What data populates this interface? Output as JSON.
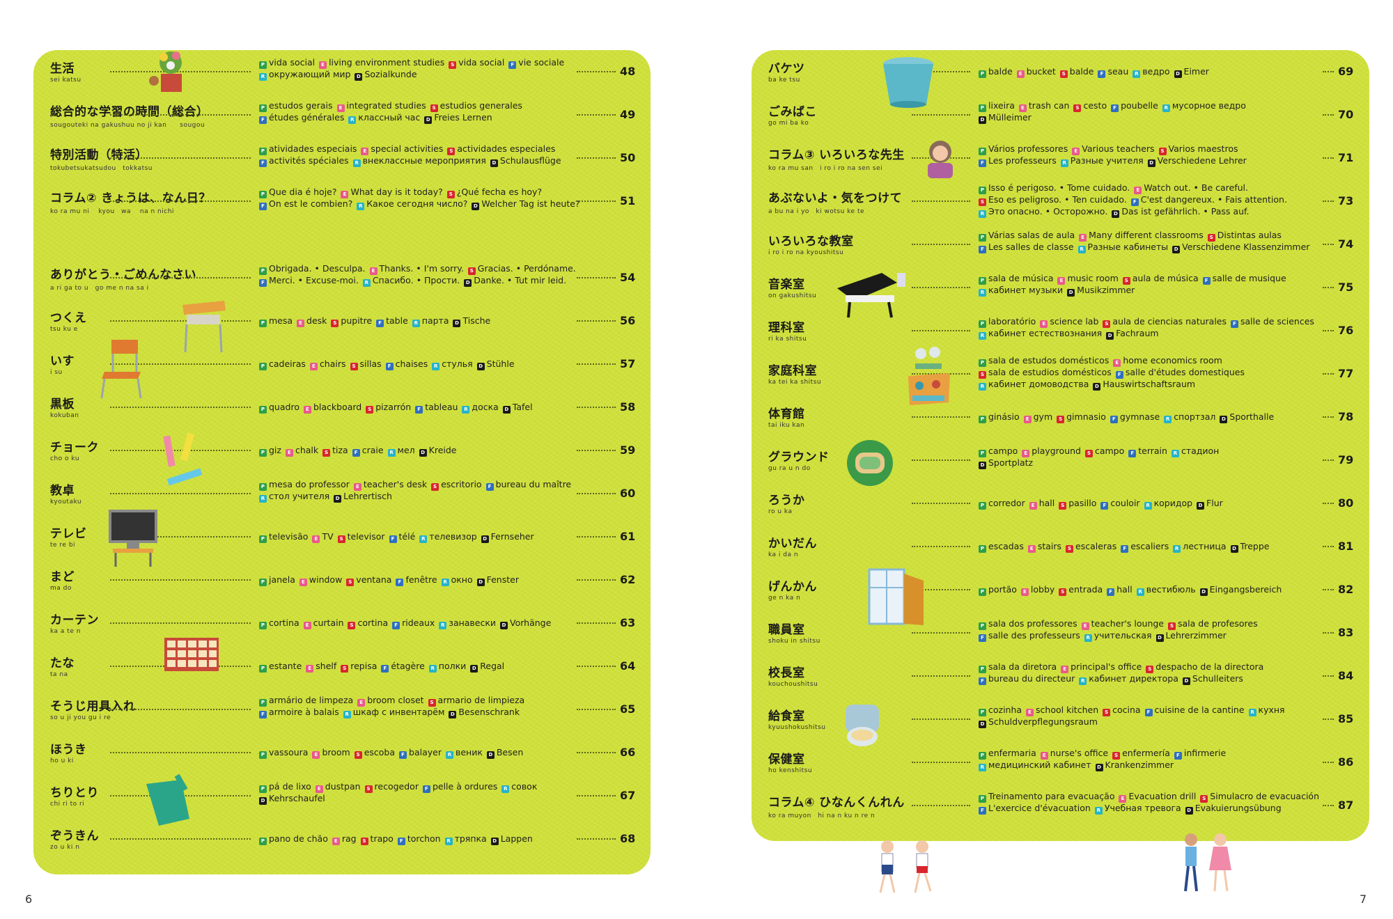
{
  "folio_left": "6",
  "folio_right": "7",
  "left": [
    {
      "jp": "生活",
      "romaji": "sei katsu",
      "l1": [
        [
          "pt",
          "vida social"
        ],
        [
          "en",
          "living environment studies"
        ],
        [
          "es",
          "vida social"
        ],
        [
          "fr",
          "vie sociale"
        ]
      ],
      "l2": [
        [
          "ru",
          "окружающий мир"
        ],
        [
          "de",
          "Sozialkunde"
        ]
      ],
      "page": "48"
    },
    {
      "jp": "総合的な学習の時間（総合）",
      "romaji": "sougouteki na gakushuu no ji kan　　sougou",
      "l1": [
        [
          "pt",
          "estudos gerais"
        ],
        [
          "en",
          "integrated studies"
        ],
        [
          "es",
          "estudios generales"
        ]
      ],
      "l2": [
        [
          "fr",
          "études générales"
        ],
        [
          "ru",
          "классный час"
        ],
        [
          "de",
          "Freies Lernen"
        ]
      ],
      "page": "49"
    },
    {
      "jp": "特別活動（特活）",
      "romaji": "tokubetsukatsudou　tokkatsu",
      "l1": [
        [
          "pt",
          "atividades especiais"
        ],
        [
          "en",
          "special activities"
        ],
        [
          "es",
          "actividades especiales"
        ]
      ],
      "l2": [
        [
          "fr",
          "activités spéciales"
        ],
        [
          "ru",
          "внеклассные мероприятия"
        ],
        [
          "de",
          "Schulausflüge"
        ]
      ],
      "page": "50"
    },
    {
      "jp": "コラム② きょうは、なん日？",
      "romaji": "ko ra mu ni　 kyou　wa　 na n nichi",
      "l1": [
        [
          "pt",
          "Que dia é hoje?"
        ],
        [
          "en",
          "What day is it today?"
        ],
        [
          "es",
          "¿Qué fecha es hoy?"
        ]
      ],
      "l2": [
        [
          "fr",
          "On est le combien?"
        ],
        [
          "ru",
          "Какое сегодня число?"
        ],
        [
          "de",
          "Welcher Tag ist heute?"
        ]
      ],
      "page": "51"
    },
    {
      "jp": "ありがとう・ごめんなさい",
      "romaji": "a ri ga to u　go me n na sa i",
      "l1": [
        [
          "pt",
          "Obrigada. • Desculpa."
        ],
        [
          "en",
          "Thanks. • I'm sorry."
        ],
        [
          "es",
          "Gracias. • Perdóname."
        ]
      ],
      "l2": [
        [
          "fr",
          "Merci. • Excuse-moi."
        ],
        [
          "ru",
          "Спасибо. • Прости."
        ],
        [
          "de",
          "Danke. • Tut mir leid."
        ]
      ],
      "page": "54"
    },
    {
      "jp": "つくえ",
      "romaji": "tsu ku e",
      "l1": [
        [
          "pt",
          "mesa"
        ],
        [
          "en",
          "desk"
        ],
        [
          "es",
          "pupitre"
        ],
        [
          "fr",
          "table"
        ],
        [
          "ru",
          "парта"
        ],
        [
          "de",
          "Tische"
        ]
      ],
      "l2": [],
      "page": "56"
    },
    {
      "jp": "いす",
      "romaji": "i su",
      "l1": [
        [
          "pt",
          "cadeiras"
        ],
        [
          "en",
          "chairs"
        ],
        [
          "es",
          "sillas"
        ],
        [
          "fr",
          "chaises"
        ],
        [
          "ru",
          "стулья"
        ],
        [
          "de",
          "Stühle"
        ]
      ],
      "l2": [],
      "page": "57"
    },
    {
      "jp": "黒板",
      "romaji": "kokuban",
      "l1": [
        [
          "pt",
          "quadro"
        ],
        [
          "en",
          "blackboard"
        ],
        [
          "es",
          "pizarrón"
        ],
        [
          "fr",
          "tableau"
        ],
        [
          "ru",
          "доска"
        ],
        [
          "de",
          "Tafel"
        ]
      ],
      "l2": [],
      "page": "58"
    },
    {
      "jp": "チョーク",
      "romaji": "cho o ku",
      "l1": [
        [
          "pt",
          "giz"
        ],
        [
          "en",
          "chalk"
        ],
        [
          "es",
          "tiza"
        ],
        [
          "fr",
          "craie"
        ],
        [
          "ru",
          "мел"
        ],
        [
          "de",
          "Kreide"
        ]
      ],
      "l2": [],
      "page": "59"
    },
    {
      "jp": "教卓",
      "romaji": "kyoutaku",
      "l1": [
        [
          "pt",
          "mesa do professor"
        ],
        [
          "en",
          "teacher's desk"
        ],
        [
          "es",
          "escritorio"
        ],
        [
          "fr",
          "bureau du maître"
        ]
      ],
      "l2": [
        [
          "ru",
          "стол учителя"
        ],
        [
          "de",
          "Lehrertisch"
        ]
      ],
      "page": "60"
    },
    {
      "jp": "テレビ",
      "romaji": "te re bi",
      "l1": [
        [
          "pt",
          "televisão"
        ],
        [
          "en",
          "TV"
        ],
        [
          "es",
          "televisor"
        ],
        [
          "fr",
          "télé"
        ],
        [
          "ru",
          "телевизор"
        ],
        [
          "de",
          "Fernseher"
        ]
      ],
      "l2": [],
      "page": "61"
    },
    {
      "jp": "まど",
      "romaji": "ma do",
      "l1": [
        [
          "pt",
          "janela"
        ],
        [
          "en",
          "window"
        ],
        [
          "es",
          "ventana"
        ],
        [
          "fr",
          "fenêtre"
        ],
        [
          "ru",
          "окно"
        ],
        [
          "de",
          "Fenster"
        ]
      ],
      "l2": [],
      "page": "62"
    },
    {
      "jp": "カーテン",
      "romaji": "ka a te n",
      "l1": [
        [
          "pt",
          "cortina"
        ],
        [
          "en",
          "curtain"
        ],
        [
          "es",
          "cortina"
        ],
        [
          "fr",
          "rideaux"
        ],
        [
          "ru",
          "занавески"
        ],
        [
          "de",
          "Vorhänge"
        ]
      ],
      "l2": [],
      "page": "63"
    },
    {
      "jp": "たな",
      "romaji": "ta na",
      "l1": [
        [
          "pt",
          "estante"
        ],
        [
          "en",
          "shelf"
        ],
        [
          "es",
          "repisa"
        ],
        [
          "fr",
          "étagère"
        ],
        [
          "ru",
          "полки"
        ],
        [
          "de",
          "Regal"
        ]
      ],
      "l2": [],
      "page": "64"
    },
    {
      "jp": "そうじ用具入れ",
      "romaji": "so u ji you gu i re",
      "l1": [
        [
          "pt",
          "armário de limpeza"
        ],
        [
          "en",
          "broom closet"
        ],
        [
          "es",
          "armario de limpieza"
        ]
      ],
      "l2": [
        [
          "fr",
          "armoire à balais"
        ],
        [
          "ru",
          "шкаф с инвентарём"
        ],
        [
          "de",
          "Besenschrank"
        ]
      ],
      "page": "65"
    },
    {
      "jp": "ほうき",
      "romaji": "ho u ki",
      "l1": [
        [
          "pt",
          "vassoura"
        ],
        [
          "en",
          "broom"
        ],
        [
          "es",
          "escoba"
        ],
        [
          "fr",
          "balayer"
        ],
        [
          "ru",
          "веник"
        ],
        [
          "de",
          "Besen"
        ]
      ],
      "l2": [],
      "page": "66"
    },
    {
      "jp": "ちりとり",
      "romaji": "chi ri to ri",
      "l1": [
        [
          "pt",
          "pá de lixo"
        ],
        [
          "en",
          "dustpan"
        ],
        [
          "es",
          "recogedor"
        ],
        [
          "fr",
          "pelle à ordures"
        ],
        [
          "ru",
          "совок"
        ]
      ],
      "l2": [
        [
          "de",
          "Kehrschaufel"
        ]
      ],
      "page": "67"
    },
    {
      "jp": "ぞうきん",
      "romaji": "zo u ki n",
      "l1": [
        [
          "pt",
          "pano de chão"
        ],
        [
          "en",
          "rag"
        ],
        [
          "es",
          "trapo"
        ],
        [
          "fr",
          "torchon"
        ],
        [
          "ru",
          "тряпка"
        ],
        [
          "de",
          "Lappen"
        ]
      ],
      "l2": [],
      "page": "68"
    }
  ],
  "right": [
    {
      "jp": "バケツ",
      "romaji": "ba ke tsu",
      "l1": [
        [
          "pt",
          "balde"
        ],
        [
          "en",
          "bucket"
        ],
        [
          "es",
          "balde"
        ],
        [
          "fr",
          "seau"
        ],
        [
          "ru",
          "ведро"
        ],
        [
          "de",
          "Eimer"
        ]
      ],
      "l2": [],
      "l3": [],
      "page": "69"
    },
    {
      "jp": "ごみばこ",
      "romaji": "go mi ba ko",
      "l1": [
        [
          "pt",
          "lixeira"
        ],
        [
          "en",
          "trash can"
        ],
        [
          "es",
          "cesto"
        ],
        [
          "fr",
          "poubelle"
        ],
        [
          "ru",
          "мусорное ведро"
        ]
      ],
      "l2": [
        [
          "de",
          "Mülleimer"
        ]
      ],
      "l3": [],
      "page": "70"
    },
    {
      "jp": "コラム③ いろいろな先生",
      "romaji": "ko ra mu san　i ro i ro na sen sei",
      "l1": [
        [
          "pt",
          "Vários professores"
        ],
        [
          "en",
          "Various teachers"
        ],
        [
          "es",
          "Varios maestros"
        ]
      ],
      "l2": [
        [
          "fr",
          "Les professeurs"
        ],
        [
          "ru",
          "Разные учителя"
        ],
        [
          "de",
          "Verschiedene Lehrer"
        ]
      ],
      "l3": [],
      "page": "71"
    },
    {
      "jp": "あぶないよ・気をつけて",
      "romaji": "a bu na i yo　ki wotsu ke te",
      "l1": [
        [
          "pt",
          "Isso é perigoso. • Tome cuidado."
        ],
        [
          "en",
          "Watch out. • Be careful."
        ]
      ],
      "l2": [
        [
          "es",
          "Eso es peligroso. • Ten cuidado."
        ],
        [
          "fr",
          "C'est dangereux. • Fais attention."
        ]
      ],
      "l3": [
        [
          "ru",
          "Это опасно. • Осторожно."
        ],
        [
          "de",
          "Das ist gefährlich. • Pass auf."
        ]
      ],
      "page": "73"
    },
    {
      "jp": "いろいろな教室",
      "romaji": "i ro i ro na kyoushitsu",
      "l1": [
        [
          "pt",
          "Várias salas de aula"
        ],
        [
          "en",
          "Many different classrooms"
        ],
        [
          "es",
          "Distintas aulas"
        ]
      ],
      "l2": [
        [
          "fr",
          "Les salles de classe"
        ],
        [
          "ru",
          "Разные кабинеты"
        ],
        [
          "de",
          "Verschiedene Klassenzimmer"
        ]
      ],
      "l3": [],
      "page": "74"
    },
    {
      "jp": "音楽室",
      "romaji": "on gakushitsu",
      "l1": [
        [
          "pt",
          "sala de música"
        ],
        [
          "en",
          "music room"
        ],
        [
          "es",
          "aula de música"
        ],
        [
          "fr",
          "salle de musique"
        ]
      ],
      "l2": [
        [
          "ru",
          "кабинет музыки"
        ],
        [
          "de",
          "Musikzimmer"
        ]
      ],
      "l3": [],
      "page": "75"
    },
    {
      "jp": "理科室",
      "romaji": "ri ka shitsu",
      "l1": [
        [
          "pt",
          "laboratório"
        ],
        [
          "en",
          "science lab"
        ],
        [
          "es",
          "aula de ciencias naturales"
        ],
        [
          "fr",
          "salle de sciences"
        ]
      ],
      "l2": [
        [
          "ru",
          "кабинет естествознания"
        ],
        [
          "de",
          "Fachraum"
        ]
      ],
      "l3": [],
      "page": "76"
    },
    {
      "jp": "家庭科室",
      "romaji": "ka tei ka shitsu",
      "l1": [
        [
          "pt",
          "sala de estudos domésticos"
        ],
        [
          "en",
          "home economics room"
        ]
      ],
      "l2": [
        [
          "es",
          "sala de estudios domésticos"
        ],
        [
          "fr",
          "salle d'études domestiques"
        ]
      ],
      "l3": [
        [
          "ru",
          "кабинет домоводства"
        ],
        [
          "de",
          "Hauswirtschaftsraum"
        ]
      ],
      "page": "77"
    },
    {
      "jp": "体育館",
      "romaji": "tai iku kan",
      "l1": [
        [
          "pt",
          "ginásio"
        ],
        [
          "en",
          "gym"
        ],
        [
          "es",
          "gimnasio"
        ],
        [
          "fr",
          "gymnase"
        ],
        [
          "ru",
          "спортзал"
        ],
        [
          "de",
          "Sporthalle"
        ]
      ],
      "l2": [],
      "l3": [],
      "page": "78"
    },
    {
      "jp": "グラウンド",
      "romaji": "gu ra u n do",
      "l1": [
        [
          "pt",
          "campo"
        ],
        [
          "en",
          "playground"
        ],
        [
          "es",
          "campo"
        ],
        [
          "fr",
          "terrain"
        ],
        [
          "ru",
          "стадион"
        ]
      ],
      "l2": [
        [
          "de",
          "Sportplatz"
        ]
      ],
      "l3": [],
      "page": "79"
    },
    {
      "jp": "ろうか",
      "romaji": "ro u ka",
      "l1": [
        [
          "pt",
          "corredor"
        ],
        [
          "en",
          "hall"
        ],
        [
          "es",
          "pasillo"
        ],
        [
          "fr",
          "couloir"
        ],
        [
          "ru",
          "коридор"
        ],
        [
          "de",
          "Flur"
        ]
      ],
      "l2": [],
      "l3": [],
      "page": "80"
    },
    {
      "jp": "かいだん",
      "romaji": "ka i da n",
      "l1": [
        [
          "pt",
          "escadas"
        ],
        [
          "en",
          "stairs"
        ],
        [
          "es",
          "escaleras"
        ],
        [
          "fr",
          "escaliers"
        ],
        [
          "ru",
          "лестница"
        ],
        [
          "de",
          "Treppe"
        ]
      ],
      "l2": [],
      "l3": [],
      "page": "81"
    },
    {
      "jp": "げんかん",
      "romaji": "ge n ka n",
      "l1": [
        [
          "pt",
          "portão"
        ],
        [
          "en",
          "lobby"
        ],
        [
          "es",
          "entrada"
        ],
        [
          "fr",
          "hall"
        ],
        [
          "ru",
          "вестибюль"
        ],
        [
          "de",
          "Eingangsbereich"
        ]
      ],
      "l2": [],
      "l3": [],
      "page": "82"
    },
    {
      "jp": "職員室",
      "romaji": "shoku in shitsu",
      "l1": [
        [
          "pt",
          "sala dos professores"
        ],
        [
          "en",
          "teacher's lounge"
        ],
        [
          "es",
          "sala de profesores"
        ]
      ],
      "l2": [
        [
          "fr",
          "salle des professeurs"
        ],
        [
          "ru",
          "учительская"
        ],
        [
          "de",
          "Lehrerzimmer"
        ]
      ],
      "l3": [],
      "page": "83"
    },
    {
      "jp": "校長室",
      "romaji": "kouchoushitsu",
      "l1": [
        [
          "pt",
          "sala da diretora"
        ],
        [
          "en",
          "principal's office"
        ],
        [
          "es",
          "despacho de la directora"
        ]
      ],
      "l2": [
        [
          "fr",
          "bureau du directeur"
        ],
        [
          "ru",
          "кабинет директора"
        ],
        [
          "de",
          "Schulleiters"
        ]
      ],
      "l3": [],
      "page": "84"
    },
    {
      "jp": "給食室",
      "romaji": "kyuushokushitsu",
      "l1": [
        [
          "pt",
          "cozinha"
        ],
        [
          "en",
          "school kitchen"
        ],
        [
          "es",
          "cocina"
        ],
        [
          "fr",
          "cuisine de la cantine"
        ],
        [
          "ru",
          "кухня"
        ]
      ],
      "l2": [
        [
          "de",
          "Schuldverpflegungsraum"
        ]
      ],
      "l3": [],
      "page": "85"
    },
    {
      "jp": "保健室",
      "romaji": "ho kenshitsu",
      "l1": [
        [
          "pt",
          "enfermaria"
        ],
        [
          "en",
          "nurse's office"
        ],
        [
          "es",
          "enfermería"
        ],
        [
          "fr",
          "infirmerie"
        ]
      ],
      "l2": [
        [
          "ru",
          "медицинский кабинет"
        ],
        [
          "de",
          "Krankenzimmer"
        ]
      ],
      "l3": [],
      "page": "86"
    },
    {
      "jp": "コラム④ ひなんくんれん",
      "romaji": "ko ra muyon　hi na n ku n re n",
      "l1": [
        [
          "pt",
          "Treinamento para evacuação"
        ],
        [
          "en",
          "Evacuation drill"
        ],
        [
          "es",
          "Simulacro de evacuación"
        ]
      ],
      "l2": [
        [
          "fr",
          "L'exercice d'évacuation"
        ],
        [
          "ru",
          "Учебная тревога"
        ],
        [
          "de",
          "Evakuierungsübung"
        ]
      ],
      "l3": [],
      "page": "87"
    }
  ],
  "badge_colors": {
    "pt": "#2e9e4a",
    "en": "#e85a8a",
    "es": "#d8262e",
    "fr": "#2f6fbf",
    "ru": "#26b3c9",
    "de": "#1a1a1a"
  },
  "illustrations": [
    "flower-pot-icon",
    "desk-icon",
    "chair-icon",
    "chalk-icon",
    "tv-cart-icon",
    "shelf-icon",
    "dustpan-icon",
    "bucket-icon",
    "teacher-portrait-icon",
    "piano-icon",
    "science-lab-icon",
    "home-ec-icon",
    "playground-icon",
    "entrance-door-icon",
    "kitchen-icon",
    "running-children-icon"
  ]
}
